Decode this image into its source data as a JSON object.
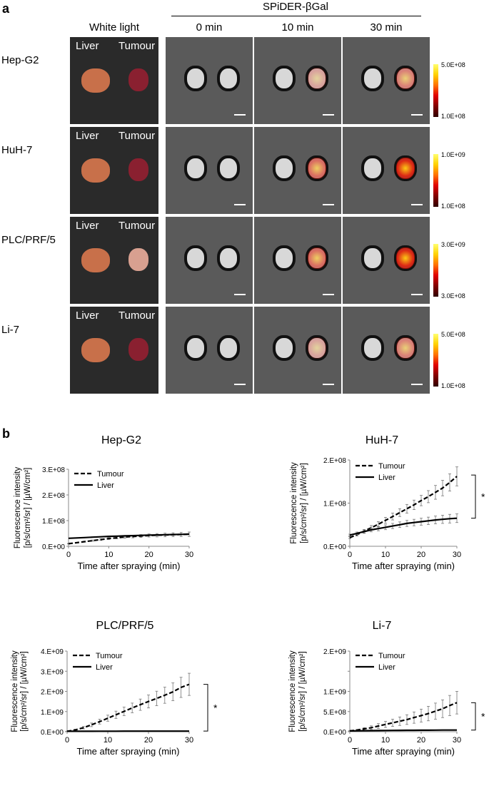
{
  "panel_a": {
    "letter": "a",
    "probe_label": "SPiDER-βGal",
    "col_white": "White light",
    "col_times": [
      "0 min",
      "10 min",
      "30 min"
    ],
    "organ_left": "Liver",
    "organ_right": "Tumour",
    "rows": [
      {
        "name": "Hep-G2",
        "cb_max": "5.0E+08",
        "cb_min": "1.0E+08"
      },
      {
        "name": "HuH-7",
        "cb_max": "1.0E+09",
        "cb_min": "1.0E+08"
      },
      {
        "name": "PLC/PRF/5",
        "cb_max": "3.0E+09",
        "cb_min": "3.0E+08"
      },
      {
        "name": "Li-7",
        "cb_max": "5.0E+08",
        "cb_min": "1.0E+08"
      }
    ]
  },
  "panel_b": {
    "letter": "b"
  },
  "chart_data": [
    {
      "type": "line",
      "title": "Hep-G2",
      "xlabel": "Time after spraying (min)",
      "ylabel": [
        "Fluorescence intensity",
        "[p/s/cm²/sr] / [µW/cm²]"
      ],
      "xlim": [
        0,
        30
      ],
      "ylim": [
        0,
        300000000
      ],
      "xticks": [
        0,
        10,
        20,
        30
      ],
      "yticks": [
        0,
        100000000,
        200000000,
        300000000
      ],
      "ytick_labels": [
        "0.E+00",
        "1.E+08",
        "2.E+08",
        "3.E+08"
      ],
      "legend": "top-left",
      "significance": "",
      "series": [
        {
          "name": "Tumour",
          "style": "dashed",
          "x": [
            0,
            2,
            4,
            6,
            8,
            10,
            12,
            14,
            16,
            18,
            20,
            22,
            24,
            26,
            28,
            30
          ],
          "y": [
            10000000,
            14000000,
            18000000,
            22000000,
            26000000,
            30000000,
            33000000,
            36000000,
            38000000,
            40000000,
            42000000,
            43000000,
            44000000,
            45000000,
            46000000,
            47000000
          ],
          "err": [
            1000000,
            1500000,
            2000000,
            2500000,
            3000000,
            3500000,
            4000000,
            4500000,
            5000000,
            5500000,
            6000000,
            6500000,
            7000000,
            7500000,
            8000000,
            8500000
          ]
        },
        {
          "name": "Liver",
          "style": "solid",
          "x": [
            0,
            2,
            4,
            6,
            8,
            10,
            12,
            14,
            16,
            18,
            20,
            22,
            24,
            26,
            28,
            30
          ],
          "y": [
            31000000,
            32500000,
            34000000,
            35500000,
            37000000,
            38500000,
            39500000,
            40500000,
            41500000,
            42500000,
            43500000,
            44300000,
            45000000,
            45800000,
            46500000,
            47500000
          ],
          "err": [
            0,
            0,
            0,
            0,
            0,
            0,
            0,
            0,
            0,
            0,
            0,
            0,
            0,
            0,
            0,
            0
          ]
        }
      ]
    },
    {
      "type": "line",
      "title": "HuH-7",
      "xlabel": "Time after spraying (min)",
      "ylabel": [
        "Fluorescence intensity",
        "[p/s/cm²/sr] / [µW/cm²]"
      ],
      "xlim": [
        0,
        30
      ],
      "ylim": [
        0,
        200000000
      ],
      "xticks": [
        0,
        10,
        20,
        30
      ],
      "yticks": [
        0,
        100000000,
        200000000
      ],
      "ytick_labels": [
        "0.E+00",
        "1.E+08",
        "2.E+08"
      ],
      "legend": "top-left",
      "significance": "*",
      "sig_range": [
        65000000,
        165000000
      ],
      "series": [
        {
          "name": "Tumour",
          "style": "dashed",
          "x": [
            0,
            2,
            4,
            6,
            8,
            10,
            12,
            14,
            16,
            18,
            20,
            22,
            24,
            26,
            28,
            30
          ],
          "y": [
            20000000,
            27000000,
            35000000,
            43000000,
            51000000,
            60000000,
            69000000,
            78000000,
            87000000,
            96000000,
            106000000,
            115000000,
            125000000,
            135000000,
            148000000,
            162000000
          ],
          "err": [
            2000000,
            3000000,
            4000000,
            5000000,
            6000000,
            7000000,
            8000000,
            9000000,
            10000000,
            11000000,
            12000000,
            14000000,
            16000000,
            18000000,
            20000000,
            22000000
          ]
        },
        {
          "name": "Liver",
          "style": "solid",
          "x": [
            0,
            2,
            4,
            6,
            8,
            10,
            12,
            14,
            16,
            18,
            20,
            22,
            24,
            26,
            28,
            30
          ],
          "y": [
            26000000,
            30000000,
            34000000,
            38000000,
            41000000,
            44000000,
            47000000,
            50000000,
            53000000,
            55000000,
            57000000,
            59000000,
            61000000,
            62500000,
            64000000,
            65000000
          ],
          "err": [
            2000000,
            3000000,
            4000000,
            4500000,
            5000000,
            5500000,
            6000000,
            6500000,
            7000000,
            7500000,
            8000000,
            8500000,
            9000000,
            9500000,
            10000000,
            10000000
          ]
        }
      ]
    },
    {
      "type": "line",
      "title": "PLC/PRF/5",
      "xlabel": "Time after spraying (min)",
      "ylabel": [
        "Fluorescence intensity",
        "[p/s/cm²/sr] / [µW/cm²]"
      ],
      "xlim": [
        0,
        30
      ],
      "ylim": [
        0,
        4000000000
      ],
      "xticks": [
        0,
        10,
        20,
        30
      ],
      "yticks": [
        0,
        1000000000,
        2000000000,
        3000000000,
        4000000000
      ],
      "ytick_labels": [
        "0.E+00",
        "1.E+09",
        "2.E+09",
        "3.E+09",
        "4.E+09"
      ],
      "legend": "top-left",
      "significance": "*",
      "sig_range": [
        30000000,
        2350000000
      ],
      "series": [
        {
          "name": "Tumour",
          "style": "dashed",
          "x": [
            0,
            2,
            4,
            6,
            8,
            10,
            12,
            14,
            16,
            18,
            20,
            22,
            24,
            26,
            28,
            30
          ],
          "y": [
            20000000,
            90000000,
            200000000,
            340000000,
            500000000,
            670000000,
            840000000,
            1010000000,
            1180000000,
            1340000000,
            1500000000,
            1650000000,
            1810000000,
            1980000000,
            2200000000,
            2350000000
          ],
          "err": [
            10000000,
            30000000,
            60000000,
            90000000,
            120000000,
            150000000,
            180000000,
            210000000,
            240000000,
            280000000,
            320000000,
            360000000,
            400000000,
            440000000,
            500000000,
            550000000
          ]
        },
        {
          "name": "Liver",
          "style": "solid",
          "x": [
            0,
            2,
            4,
            6,
            8,
            10,
            12,
            14,
            16,
            18,
            20,
            22,
            24,
            26,
            28,
            30
          ],
          "y": [
            20000000,
            21000000,
            22000000,
            23000000,
            24000000,
            25000000,
            26000000,
            27000000,
            28000000,
            29000000,
            30000000,
            30000000,
            30000000,
            30000000,
            30000000,
            30000000
          ],
          "err": [
            0,
            0,
            0,
            0,
            0,
            0,
            0,
            0,
            0,
            0,
            0,
            0,
            0,
            0,
            0,
            0
          ]
        }
      ]
    },
    {
      "type": "line",
      "title": "Li-7",
      "xlabel": "Time after spraying (min)",
      "ylabel": [
        "Fluorescence intensity",
        "[p/s/cm²/sr] / [µW/cm²]"
      ],
      "xlim": [
        0,
        30
      ],
      "ylim": [
        0,
        2000000000
      ],
      "xticks": [
        0,
        10,
        20,
        30
      ],
      "yticks": [
        0,
        500000000,
        1000000000,
        1500000000,
        2000000000
      ],
      "ytick_labels": [
        "0.E+00",
        "5.E+08",
        "1.E+09",
        "",
        "2.E+09"
      ],
      "legend": "top-left",
      "significance": "*",
      "sig_range": [
        40000000,
        720000000
      ],
      "series": [
        {
          "name": "Tumour",
          "style": "dashed",
          "x": [
            0,
            2,
            4,
            6,
            8,
            10,
            12,
            14,
            16,
            18,
            20,
            22,
            24,
            26,
            28,
            30
          ],
          "y": [
            20000000,
            40000000,
            70000000,
            100000000,
            140000000,
            180000000,
            220000000,
            260000000,
            300000000,
            350000000,
            400000000,
            450000000,
            510000000,
            570000000,
            650000000,
            720000000
          ],
          "err": [
            5000000,
            15000000,
            30000000,
            45000000,
            60000000,
            75000000,
            90000000,
            105000000,
            120000000,
            140000000,
            160000000,
            180000000,
            200000000,
            220000000,
            250000000,
            280000000
          ]
        },
        {
          "name": "Liver",
          "style": "solid",
          "x": [
            0,
            2,
            4,
            6,
            8,
            10,
            12,
            14,
            16,
            18,
            20,
            22,
            24,
            26,
            28,
            30
          ],
          "y": [
            20000000,
            22000000,
            24000000,
            26000000,
            28000000,
            30000000,
            32000000,
            34000000,
            35000000,
            36000000,
            37000000,
            38000000,
            39000000,
            40000000,
            40000000,
            40000000
          ],
          "err": [
            0,
            0,
            0,
            0,
            0,
            0,
            0,
            0,
            0,
            0,
            0,
            0,
            0,
            0,
            0,
            0
          ]
        }
      ]
    }
  ]
}
